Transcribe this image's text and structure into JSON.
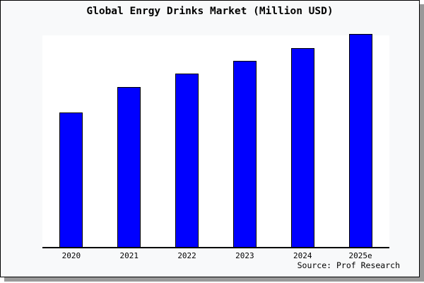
{
  "page": {
    "background_color": "#f8f9fa",
    "plot_background_color": "#ffffff",
    "border_color": "#000000",
    "shadow_color": "#999999"
  },
  "chart": {
    "title": "Global Enrgy Drinks Market (Million USD)",
    "source": "Source: Prof Research",
    "bar_fill_color": "#0000ff",
    "bar_border_color": "#000000"
  },
  "chart_data": {
    "type": "bar",
    "title": "Global Enrgy Drinks Market (Million USD)",
    "categories": [
      "2020",
      "2021",
      "2022",
      "2023",
      "2024",
      "2025e"
    ],
    "values": [
      63,
      75,
      81.5,
      87.5,
      93.5,
      100
    ],
    "value_note": "no y-axis ticks shown; values estimated from bar heights, normalized to 2025e = 100",
    "xlabel": "",
    "ylabel": "",
    "ylim": [
      0,
      100
    ],
    "grid": false,
    "legend": null,
    "y_axis_visible": false,
    "annotation": "Source: Prof Research"
  }
}
